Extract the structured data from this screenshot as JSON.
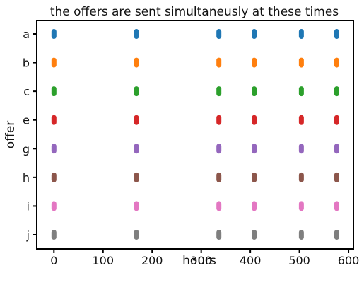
{
  "chart_data": {
    "type": "scatter",
    "title": "the offers are sent simultaneusly at these times",
    "xlabel": "hours",
    "ylabel": "offer",
    "xlim": [
      -35,
      610
    ],
    "xticks": [
      0,
      100,
      200,
      300,
      400,
      500,
      600
    ],
    "categories": [
      "a",
      "b",
      "c",
      "e",
      "g",
      "h",
      "i",
      "j"
    ],
    "x": [
      0,
      168,
      336,
      408,
      504,
      576
    ],
    "grid": false,
    "series": [
      {
        "category": "a",
        "color": "#1f77b4"
      },
      {
        "category": "b",
        "color": "#ff7f0e"
      },
      {
        "category": "c",
        "color": "#2ca02c"
      },
      {
        "category": "e",
        "color": "#d62728"
      },
      {
        "category": "g",
        "color": "#9467bd"
      },
      {
        "category": "h",
        "color": "#8c564b"
      },
      {
        "category": "i",
        "color": "#e377c2"
      },
      {
        "category": "j",
        "color": "#7f7f7f"
      }
    ]
  }
}
